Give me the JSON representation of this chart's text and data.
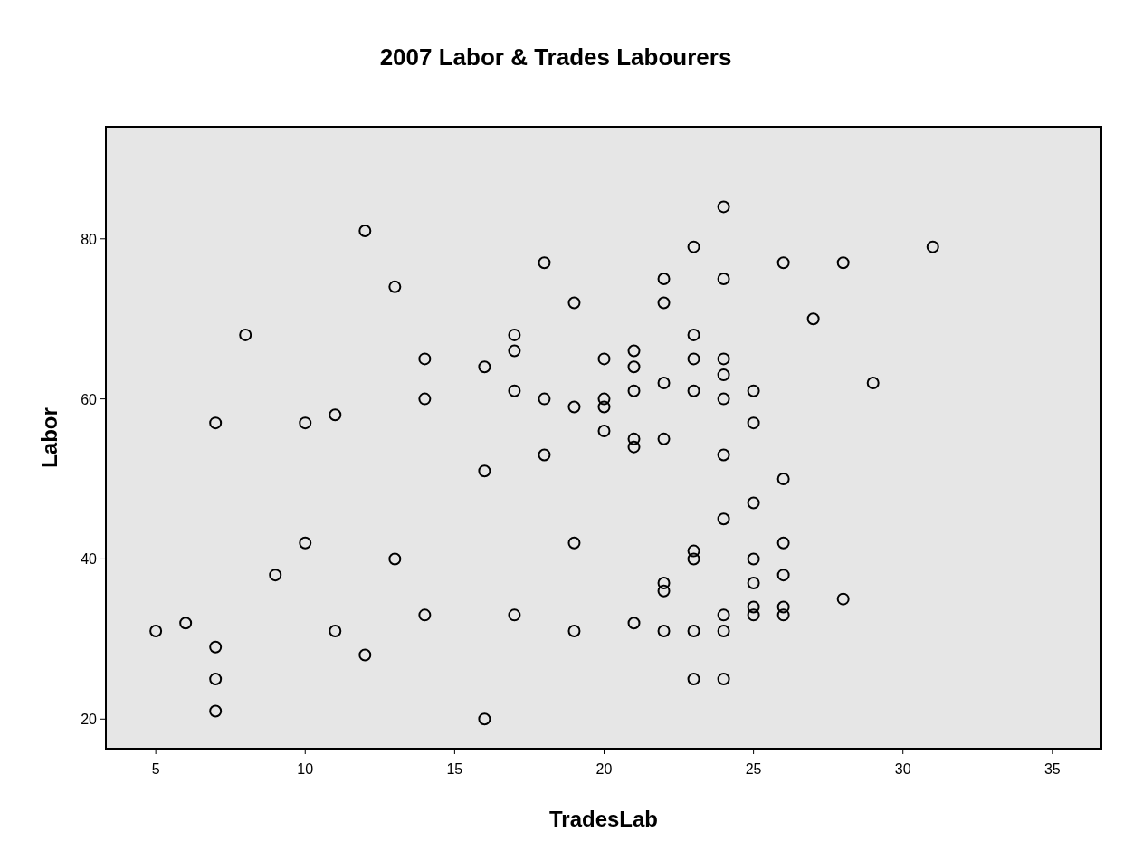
{
  "chart_data": {
    "type": "scatter",
    "title": "2007 Labor & Trades Labourers",
    "xlabel": "TradesLab",
    "ylabel": "Labor",
    "xlim": [
      3.33,
      36.64
    ],
    "ylim": [
      16.3,
      94
    ],
    "xticks": [
      5,
      10,
      15,
      20,
      25,
      30,
      35
    ],
    "yticks": [
      20,
      40,
      60,
      80
    ],
    "marker": "circle",
    "grid": false,
    "series": [
      {
        "color": "#000000",
        "x": [
          5,
          6,
          7,
          7,
          7,
          7,
          8,
          9,
          10,
          10,
          11,
          11,
          12,
          12,
          13,
          13,
          14,
          14,
          14,
          16,
          16,
          16,
          17,
          17,
          17,
          17,
          18,
          18,
          18,
          19,
          19,
          19,
          19,
          20,
          20,
          20,
          20,
          21,
          21,
          21,
          21,
          21,
          21,
          22,
          22,
          22,
          22,
          22,
          22,
          22,
          23,
          23,
          23,
          23,
          23,
          23,
          23,
          23,
          24,
          24,
          24,
          24,
          24,
          24,
          24,
          24,
          24,
          24,
          25,
          25,
          25,
          25,
          25,
          25,
          25,
          26,
          26,
          26,
          26,
          26,
          26,
          27,
          28,
          28,
          29,
          31
        ],
        "values": [
          31,
          32,
          29,
          25,
          21,
          57,
          68,
          38,
          57,
          42,
          58,
          31,
          81,
          28,
          74,
          40,
          65,
          60,
          33,
          64,
          51,
          20,
          68,
          66,
          61,
          33,
          77,
          60,
          53,
          72,
          59,
          42,
          31,
          65,
          60,
          59,
          56,
          66,
          64,
          61,
          55,
          54,
          32,
          75,
          72,
          62,
          55,
          37,
          36,
          31,
          79,
          68,
          65,
          61,
          41,
          40,
          31,
          25,
          84,
          75,
          65,
          63,
          60,
          53,
          45,
          33,
          31,
          25,
          61,
          57,
          47,
          40,
          37,
          34,
          33,
          77,
          50,
          42,
          38,
          34,
          33,
          70,
          77,
          35,
          62,
          79
        ]
      }
    ]
  }
}
